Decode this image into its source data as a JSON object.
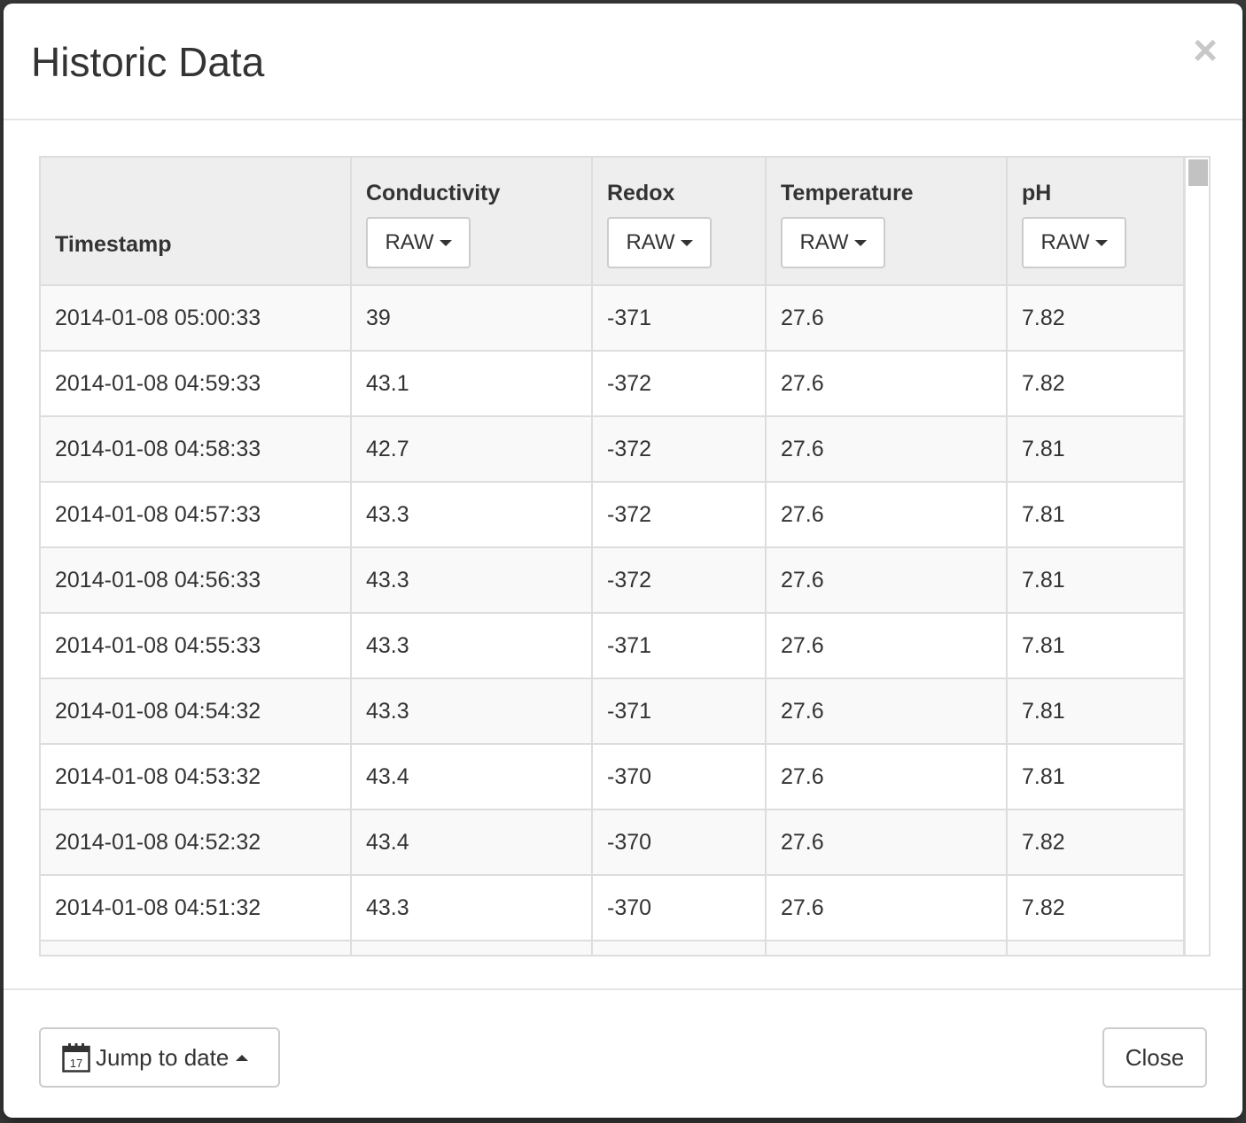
{
  "modal": {
    "title": "Historic Data",
    "close_glyph": "×"
  },
  "table": {
    "columns": [
      {
        "label": "Timestamp"
      },
      {
        "label": "Conductivity",
        "mode": "RAW"
      },
      {
        "label": "Redox",
        "mode": "RAW"
      },
      {
        "label": "Temperature",
        "mode": "RAW"
      },
      {
        "label": "pH",
        "mode": "RAW"
      }
    ],
    "rows": [
      [
        "2014-01-08 05:00:33",
        "39",
        "-371",
        "27.6",
        "7.82"
      ],
      [
        "2014-01-08 04:59:33",
        "43.1",
        "-372",
        "27.6",
        "7.82"
      ],
      [
        "2014-01-08 04:58:33",
        "42.7",
        "-372",
        "27.6",
        "7.81"
      ],
      [
        "2014-01-08 04:57:33",
        "43.3",
        "-372",
        "27.6",
        "7.81"
      ],
      [
        "2014-01-08 04:56:33",
        "43.3",
        "-372",
        "27.6",
        "7.81"
      ],
      [
        "2014-01-08 04:55:33",
        "43.3",
        "-371",
        "27.6",
        "7.81"
      ],
      [
        "2014-01-08 04:54:32",
        "43.3",
        "-371",
        "27.6",
        "7.81"
      ],
      [
        "2014-01-08 04:53:32",
        "43.4",
        "-370",
        "27.6",
        "7.81"
      ],
      [
        "2014-01-08 04:52:32",
        "43.4",
        "-370",
        "27.6",
        "7.82"
      ],
      [
        "2014-01-08 04:51:32",
        "43.3",
        "-370",
        "27.6",
        "7.82"
      ],
      [
        "",
        "",
        "",
        "",
        ""
      ]
    ]
  },
  "footer": {
    "jump_label": "Jump to date",
    "calendar_day": "17",
    "close_label": "Close"
  },
  "icons": {
    "close": "close-icon",
    "caret": "caret-down-icon",
    "calendar": "calendar-icon",
    "caret_up": "caret-up-icon"
  }
}
